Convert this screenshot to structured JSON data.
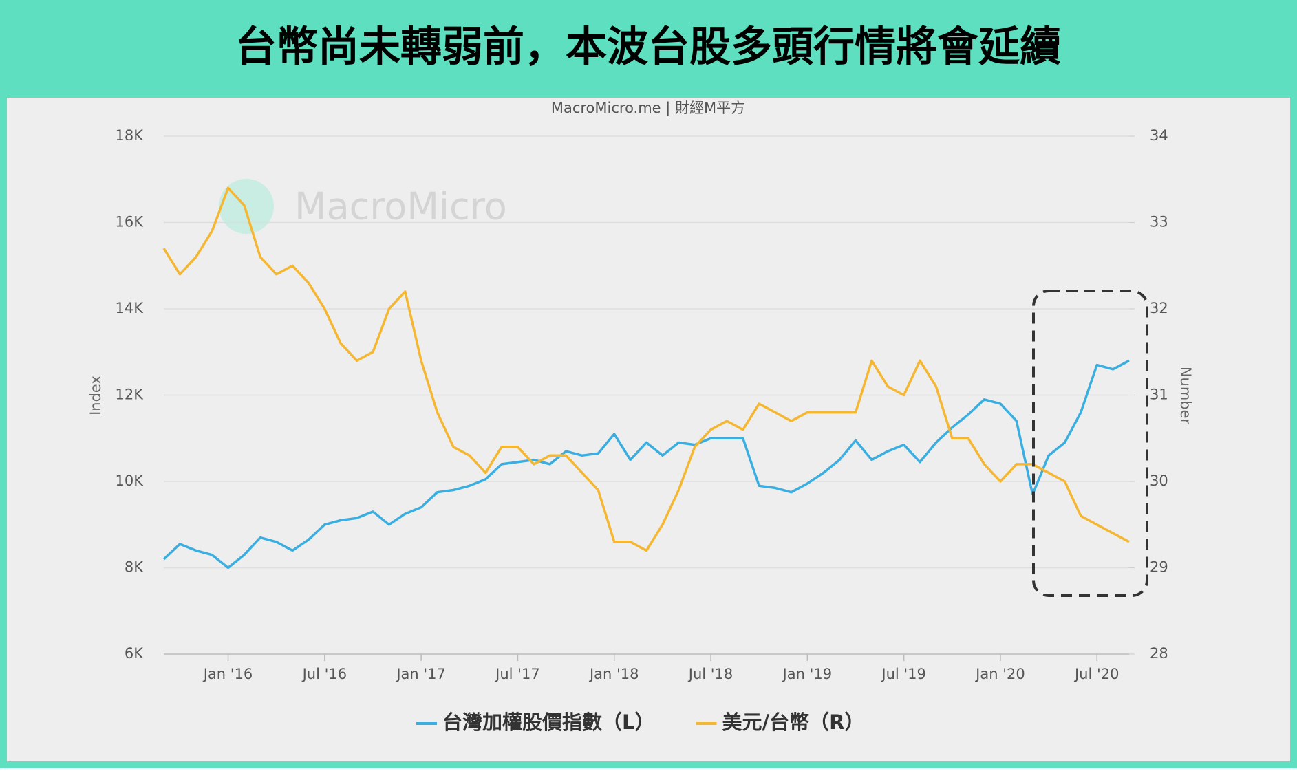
{
  "chart_data": {
    "type": "line",
    "title": "台幣尚未轉弱前，本波台股多頭行情將會延續",
    "subtitle": "MacroMicro.me | 財經M平方",
    "watermark": "MacroMicro",
    "ylabel": "Index",
    "y2label": "Number",
    "x": [
      "2015-09",
      "2015-10",
      "2015-11",
      "2015-12",
      "2016-01",
      "2016-02",
      "2016-03",
      "2016-04",
      "2016-05",
      "2016-06",
      "2016-07",
      "2016-08",
      "2016-09",
      "2016-10",
      "2016-11",
      "2016-12",
      "2017-01",
      "2017-02",
      "2017-03",
      "2017-04",
      "2017-05",
      "2017-06",
      "2017-07",
      "2017-08",
      "2017-09",
      "2017-10",
      "2017-11",
      "2017-12",
      "2018-01",
      "2018-02",
      "2018-03",
      "2018-04",
      "2018-05",
      "2018-06",
      "2018-07",
      "2018-08",
      "2018-09",
      "2018-10",
      "2018-11",
      "2018-12",
      "2019-01",
      "2019-02",
      "2019-03",
      "2019-04",
      "2019-05",
      "2019-06",
      "2019-07",
      "2019-08",
      "2019-09",
      "2019-10",
      "2019-11",
      "2019-12",
      "2020-01",
      "2020-02",
      "2020-03",
      "2020-04",
      "2020-05",
      "2020-06",
      "2020-07",
      "2020-08",
      "2020-09"
    ],
    "xlim": [
      "2015-09",
      "2020-09"
    ],
    "xticks": [
      {
        "value": "2016-01",
        "label": "Jan '16"
      },
      {
        "value": "2016-07",
        "label": "Jul '16"
      },
      {
        "value": "2017-01",
        "label": "Jan '17"
      },
      {
        "value": "2017-07",
        "label": "Jul '17"
      },
      {
        "value": "2018-01",
        "label": "Jan '18"
      },
      {
        "value": "2018-07",
        "label": "Jul '18"
      },
      {
        "value": "2019-01",
        "label": "Jan '19"
      },
      {
        "value": "2019-07",
        "label": "Jul '19"
      },
      {
        "value": "2020-01",
        "label": "Jan '20"
      },
      {
        "value": "2020-07",
        "label": "Jul '20"
      }
    ],
    "ylim": [
      6000,
      18000
    ],
    "yticks": [
      {
        "value": 6000,
        "label": "6K"
      },
      {
        "value": 8000,
        "label": "8K"
      },
      {
        "value": 10000,
        "label": "10K"
      },
      {
        "value": 12000,
        "label": "12K"
      },
      {
        "value": 14000,
        "label": "14K"
      },
      {
        "value": 16000,
        "label": "16K"
      },
      {
        "value": 18000,
        "label": "18K"
      }
    ],
    "y2lim": [
      28,
      34
    ],
    "y2ticks": [
      28,
      29,
      30,
      31,
      32,
      33,
      34
    ],
    "grid": true,
    "legend": "bottom",
    "series": [
      {
        "name": "台灣加權股價指數（L）",
        "color": "#3aaee0",
        "axis": "y",
        "values": [
          8200,
          8550,
          8400,
          8300,
          8000,
          8300,
          8700,
          8600,
          8400,
          8650,
          9000,
          9100,
          9150,
          9300,
          9000,
          9250,
          9400,
          9750,
          9800,
          9900,
          10050,
          10400,
          10450,
          10500,
          10400,
          10700,
          10600,
          10650,
          11100,
          10500,
          10900,
          10600,
          10900,
          10850,
          11000,
          11000,
          11000,
          9900,
          9850,
          9750,
          9950,
          10200,
          10500,
          10950,
          10500,
          10700,
          10850,
          10450,
          10900,
          11250,
          11550,
          11900,
          11800,
          11400,
          9700,
          10600,
          10900,
          11600,
          12700,
          12600,
          12800
        ]
      },
      {
        "name": "美元/台幣（R）",
        "color": "#f5b731",
        "axis": "y2",
        "values": [
          32.7,
          32.4,
          32.6,
          32.9,
          33.4,
          33.2,
          32.6,
          32.4,
          32.5,
          32.3,
          32.0,
          31.6,
          31.4,
          31.5,
          32.0,
          32.2,
          31.4,
          30.8,
          30.4,
          30.3,
          30.1,
          30.4,
          30.4,
          30.2,
          30.3,
          30.3,
          30.1,
          29.9,
          29.3,
          29.3,
          29.2,
          29.5,
          29.9,
          30.4,
          30.6,
          30.7,
          30.6,
          30.9,
          30.8,
          30.7,
          30.8,
          30.8,
          30.8,
          30.8,
          31.4,
          31.1,
          31.0,
          31.4,
          31.1,
          30.5,
          30.5,
          30.2,
          30.0,
          30.2,
          30.2,
          30.1,
          30.0,
          29.6,
          29.5,
          29.4,
          29.3
        ]
      }
    ]
  }
}
